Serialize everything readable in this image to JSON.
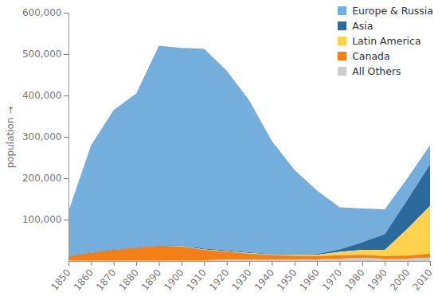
{
  "chart_data": {
    "type": "area",
    "stacked": true,
    "grid": false,
    "legend": "top-right",
    "y_label": "population",
    "x": [
      1850,
      1860,
      1870,
      1880,
      1890,
      1900,
      1910,
      1920,
      1930,
      1940,
      1950,
      1960,
      1970,
      1980,
      1990,
      2000,
      2010
    ],
    "xlim": [
      1850,
      2010
    ],
    "xticks": [
      1850,
      1860,
      1870,
      1880,
      1890,
      1900,
      1910,
      1920,
      1930,
      1940,
      1950,
      1960,
      1970,
      1980,
      1990,
      2000,
      2010
    ],
    "ylim": [
      0,
      600000
    ],
    "yticks": [
      {
        "value": 100000,
        "label": "100,000"
      },
      {
        "value": 200000,
        "label": "200,000"
      },
      {
        "value": 300000,
        "label": "300,000"
      },
      {
        "value": 400000,
        "label": "400,000"
      },
      {
        "value": 500000,
        "label": "500,000"
      },
      {
        "value": 600000,
        "label": "600,000"
      }
    ],
    "series": [
      {
        "name": "Europe & Russia",
        "color": "#74aedc",
        "values": [
          107000,
          259000,
          337000,
          372000,
          482000,
          478000,
          483000,
          434000,
          367000,
          273000,
          204000,
          153000,
          102000,
          82000,
          60000,
          52000,
          47000
        ]
      },
      {
        "name": "Asia",
        "color": "#2c6a9e",
        "values": [
          1000,
          1000,
          1000,
          1000,
          1000,
          1000,
          2000,
          2000,
          2000,
          1000,
          1000,
          2000,
          6000,
          18000,
          38000,
          70000,
          100000
        ]
      },
      {
        "name": "Latin America",
        "color": "#ffd24d",
        "values": [
          0,
          0,
          0,
          0,
          0,
          1000,
          1000,
          1000,
          1000,
          1000,
          2000,
          3000,
          8000,
          12000,
          15000,
          65000,
          115000
        ]
      },
      {
        "name": "Canada",
        "color": "#f57f17",
        "values": [
          10000,
          18000,
          25000,
          30000,
          35000,
          33000,
          25000,
          20000,
          15000,
          12000,
          10000,
          8000,
          8000,
          8000,
          6000,
          7000,
          10000
        ]
      },
      {
        "name": "All Others",
        "color": "#cccccc",
        "values": [
          2000,
          2000,
          2000,
          2000,
          2000,
          2000,
          2000,
          3000,
          3000,
          3000,
          3000,
          4000,
          6000,
          7000,
          6000,
          6000,
          8000
        ]
      }
    ]
  }
}
